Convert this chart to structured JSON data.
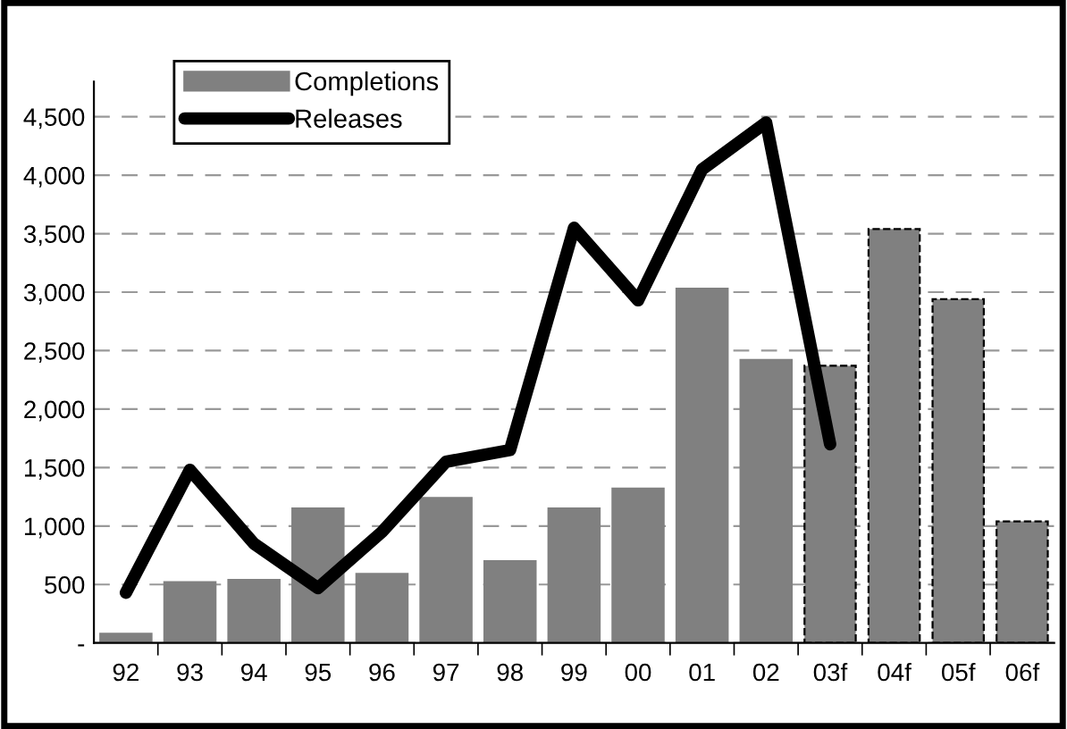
{
  "chart_data": {
    "type": "bar",
    "categories": [
      "92",
      "93",
      "94",
      "95",
      "96",
      "97",
      "98",
      "99",
      "00",
      "01",
      "02",
      "03f",
      "04f",
      "05f",
      "06f"
    ],
    "series": [
      {
        "name": "Completions",
        "color": "#808080",
        "values": [
          80,
          520,
          540,
          1150,
          590,
          1240,
          700,
          1150,
          1320,
          3030,
          2420,
          null,
          null,
          null,
          null
        ]
      },
      {
        "color": "#808080",
        "line_style": "dashed",
        "values": [
          null,
          null,
          null,
          null,
          null,
          null,
          null,
          null,
          null,
          null,
          null,
          2370,
          3540,
          2940,
          1040
        ]
      },
      {
        "name": "Releases",
        "type": "line",
        "color": "#000000",
        "values": [
          430,
          1480,
          850,
          470,
          950,
          1550,
          1650,
          3550,
          2930,
          4050,
          4450,
          1700,
          null,
          null,
          null
        ]
      }
    ],
    "ylim": [
      0,
      4800
    ],
    "yticks": [
      {
        "value": 0,
        "label": "-"
      },
      {
        "value": 500,
        "label": "500"
      },
      {
        "value": 1000,
        "label": "1,000"
      },
      {
        "value": 1500,
        "label": "1,500"
      },
      {
        "value": 2000,
        "label": "2,000"
      },
      {
        "value": 2500,
        "label": "2,500"
      },
      {
        "value": 3000,
        "label": "3,000"
      },
      {
        "value": 3500,
        "label": "3,500"
      },
      {
        "value": 4000,
        "label": "4,000"
      },
      {
        "value": 4500,
        "label": "4,500"
      }
    ],
    "grid": "y",
    "legend": "top left"
  }
}
